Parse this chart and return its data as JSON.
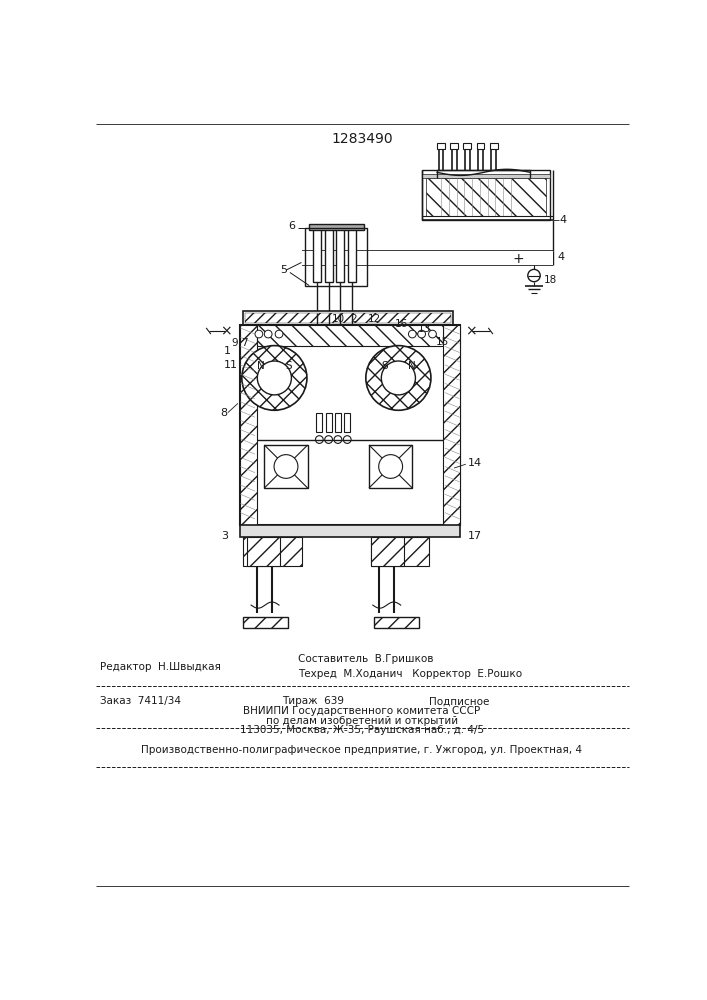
{
  "patent_number": "1283490",
  "bg_color": "#ffffff",
  "line_color": "#1a1a1a",
  "footer": {
    "editor": "Редактор  Н.Швыдкая",
    "composer": "Составитель  В.Гришков",
    "techred": "Техред  М.Ходанич",
    "corrector": "Корректор  Е.Рошко",
    "order": "Заказ  7411/34",
    "tirazh": "Тираж  639",
    "podpisnoe": "Подписное",
    "vnipi_line1": "ВНИИПИ Государственного комитета СССР",
    "vnipi_line2": "по делам изобретений и открытий",
    "vnipi_line3": "113035, Москва, Ж-35, Раушская наб., д. 4/5",
    "production": "Производственно-полиграфическое предприятие, г. Ужгород, ул. Проектная, 4"
  }
}
